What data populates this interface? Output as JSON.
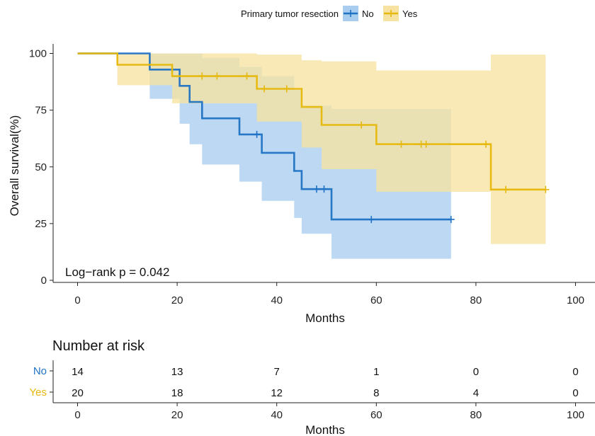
{
  "chart_data": {
    "type": "line",
    "subtype": "kaplan-meier",
    "legend": {
      "title": "Primary tumor resection",
      "position": "top",
      "entries": [
        "No",
        "Yes"
      ]
    },
    "xlabel": "Months",
    "ylabel": "Overall survival(%)",
    "xlim": [
      -4,
      104
    ],
    "ylim": [
      -2,
      105
    ],
    "xticks": [
      0,
      20,
      40,
      60,
      80,
      100
    ],
    "yticks": [
      0,
      25,
      50,
      75,
      100
    ],
    "grid": false,
    "annotation": "Log−rank  p = 0.042",
    "series": [
      {
        "name": "No",
        "color": "#1f72c4",
        "ci_color": "#a9cdee",
        "steps": [
          {
            "x": 0,
            "y": 100
          },
          {
            "x": 14.5,
            "y": 92.9
          },
          {
            "x": 20.5,
            "y": 85.7
          },
          {
            "x": 22.5,
            "y": 78.6
          },
          {
            "x": 25,
            "y": 71.4
          },
          {
            "x": 32.5,
            "y": 64.3
          },
          {
            "x": 37,
            "y": 56.2
          },
          {
            "x": 43.5,
            "y": 48.2
          },
          {
            "x": 45,
            "y": 40.2
          },
          {
            "x": 51,
            "y": 26.8
          },
          {
            "x": 75,
            "y": 26.8
          }
        ],
        "ci": [
          {
            "x": 0,
            "lower": 100,
            "upper": 100
          },
          {
            "x": 14.5,
            "lower": 80,
            "upper": 100
          },
          {
            "x": 20.5,
            "lower": 69,
            "upper": 100
          },
          {
            "x": 22.5,
            "lower": 60,
            "upper": 100
          },
          {
            "x": 25,
            "lower": 51,
            "upper": 98
          },
          {
            "x": 32.5,
            "lower": 43.5,
            "upper": 94
          },
          {
            "x": 37,
            "lower": 35,
            "upper": 90
          },
          {
            "x": 43.5,
            "lower": 27.5,
            "upper": 84
          },
          {
            "x": 45,
            "lower": 20.5,
            "upper": 77
          },
          {
            "x": 51,
            "lower": 9.5,
            "upper": 75.5
          },
          {
            "x": 75,
            "lower": 9.5,
            "upper": 75.5
          }
        ],
        "censor": [
          {
            "x": 36,
            "y": 64.3
          },
          {
            "x": 48,
            "y": 40.2
          },
          {
            "x": 49.5,
            "y": 40.2
          },
          {
            "x": 59,
            "y": 26.8
          },
          {
            "x": 75,
            "y": 26.8
          }
        ]
      },
      {
        "name": "Yes",
        "color": "#e6b80c",
        "ci_color": "#f6e3a1",
        "steps": [
          {
            "x": 0,
            "y": 100
          },
          {
            "x": 8,
            "y": 95
          },
          {
            "x": 19,
            "y": 90
          },
          {
            "x": 36,
            "y": 84.4
          },
          {
            "x": 45,
            "y": 76.4
          },
          {
            "x": 49,
            "y": 68.5
          },
          {
            "x": 60,
            "y": 60
          },
          {
            "x": 83,
            "y": 40
          },
          {
            "x": 94,
            "y": 40
          }
        ],
        "ci": [
          {
            "x": 0,
            "lower": 100,
            "upper": 100
          },
          {
            "x": 8,
            "lower": 86,
            "upper": 100
          },
          {
            "x": 19,
            "lower": 78,
            "upper": 100
          },
          {
            "x": 36,
            "lower": 70,
            "upper": 99.5
          },
          {
            "x": 45,
            "lower": 58.5,
            "upper": 97
          },
          {
            "x": 49,
            "lower": 49,
            "upper": 96.5
          },
          {
            "x": 60,
            "lower": 39,
            "upper": 92.5
          },
          {
            "x": 83,
            "lower": 16,
            "upper": 99.5
          },
          {
            "x": 94,
            "lower": 16,
            "upper": 99.5
          }
        ],
        "censor": [
          {
            "x": 25,
            "y": 90
          },
          {
            "x": 28,
            "y": 90
          },
          {
            "x": 34,
            "y": 90
          },
          {
            "x": 37.5,
            "y": 84.4
          },
          {
            "x": 42,
            "y": 84.4
          },
          {
            "x": 57,
            "y": 68.5
          },
          {
            "x": 65,
            "y": 60
          },
          {
            "x": 69,
            "y": 60
          },
          {
            "x": 70,
            "y": 60
          },
          {
            "x": 82,
            "y": 60
          },
          {
            "x": 86,
            "y": 40
          },
          {
            "x": 94,
            "y": 40
          }
        ]
      }
    ],
    "risk_table": {
      "title": "Number at risk",
      "xlabel": "Months",
      "times": [
        0,
        20,
        40,
        60,
        80,
        100
      ],
      "rows": [
        {
          "name": "No",
          "color": "#1f72c4",
          "values": [
            14,
            13,
            7,
            1,
            0,
            0
          ]
        },
        {
          "name": "Yes",
          "color": "#e6b80c",
          "values": [
            20,
            18,
            12,
            8,
            4,
            0
          ]
        }
      ]
    }
  }
}
